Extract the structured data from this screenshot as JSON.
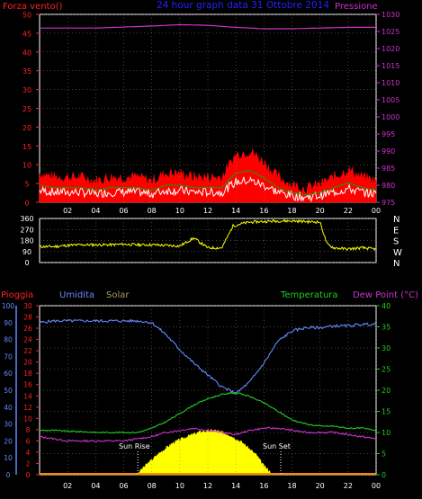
{
  "colors": {
    "background": "#000000",
    "frame": "#ffffff",
    "grid": "#888888",
    "wind": "#ff0000",
    "wind_avg": "#00aa00",
    "wind_low": "#ffffff",
    "pressure": "#cc33cc",
    "title": "#2222ff",
    "direction": "#ffff00",
    "rain": "#ff2222",
    "humidity": "#6688ff",
    "solar": "#ffff00",
    "temperature": "#22cc22",
    "dewpoint": "#cc33cc",
    "yellow_axis": "#dddd00",
    "white_axis": "#ffffff"
  },
  "top_chart": {
    "title": "24 hour graph data 31 Ottobre 2014",
    "left_label": "Forza vento()",
    "right_label": "Pressione",
    "left_ticks": [
      "0",
      "5",
      "10",
      "15",
      "20",
      "25",
      "30",
      "35",
      "40",
      "45",
      "50"
    ],
    "right_ticks": [
      "975",
      "980",
      "985",
      "990",
      "995",
      "1000",
      "1005",
      "1010",
      "1015",
      "1020",
      "1025",
      "1030"
    ]
  },
  "direction_chart": {
    "left_ticks": [
      "0",
      "90",
      "180",
      "270",
      "360"
    ],
    "compass": [
      "N",
      "W",
      "S",
      "E",
      "N"
    ]
  },
  "bottom_chart": {
    "labels": {
      "rain": "Pioggia",
      "humidity": "Umidita",
      "solar": "Solar",
      "temperature": "Temperatura",
      "dewpoint": "Dew Point (°C)"
    },
    "annotations": {
      "sunrise": "Sun Rise",
      "sunset": "Sun Set"
    },
    "humidity_ticks": [
      "0",
      "10",
      "20",
      "30",
      "40",
      "50",
      "60",
      "70",
      "80",
      "90",
      "100"
    ],
    "rain_ticks": [
      "0",
      "2",
      "4",
      "6",
      "8",
      "10",
      "12",
      "14",
      "16",
      "18",
      "20",
      "22",
      "24",
      "26",
      "28",
      "30"
    ],
    "temp_ticks": [
      "0",
      "5",
      "10",
      "15",
      "20",
      "25",
      "30",
      "35",
      "40"
    ]
  },
  "x_ticks": [
    "02",
    "04",
    "06",
    "08",
    "10",
    "12",
    "14",
    "16",
    "18",
    "20",
    "22",
    "00"
  ],
  "chart_data": [
    {
      "type": "line",
      "title": "24 hour graph data 31 Ottobre 2014",
      "x_unit": "hour",
      "xlim": [
        0,
        24
      ],
      "series": [
        {
          "name": "Forza vento()",
          "axis": "left",
          "ylim": [
            0,
            50
          ],
          "x": [
            0,
            1,
            2,
            3,
            4,
            5,
            6,
            7,
            8,
            9,
            10,
            11,
            12,
            13,
            14,
            15,
            16,
            17,
            18,
            19,
            20,
            21,
            22,
            23,
            24
          ],
          "values": [
            7,
            6,
            6,
            6,
            5,
            6,
            6,
            6,
            5,
            7,
            7,
            6,
            6,
            6,
            12,
            13,
            10,
            6,
            4,
            3,
            4,
            6,
            8,
            6,
            5
          ]
        },
        {
          "name": "Pressione",
          "axis": "right",
          "ylim": [
            975,
            1030
          ],
          "x": [
            0,
            2,
            4,
            6,
            8,
            10,
            12,
            14,
            16,
            18,
            20,
            22,
            24
          ],
          "values": [
            1026,
            1026,
            1026,
            1026.3,
            1026.6,
            1027,
            1026.8,
            1026.2,
            1025.8,
            1025.8,
            1026,
            1026.2,
            1026.2
          ]
        }
      ]
    },
    {
      "type": "line",
      "xlim": [
        0,
        24
      ],
      "ylim": [
        0,
        360
      ],
      "series": [
        {
          "name": "direction",
          "x": [
            0,
            1,
            2,
            3,
            4,
            5,
            6,
            7,
            8,
            9,
            10,
            11,
            12,
            13,
            13.8,
            14.5,
            15,
            16,
            17,
            18,
            19,
            20,
            20.5,
            21,
            22,
            23,
            24
          ],
          "values": [
            130,
            130,
            140,
            145,
            145,
            145,
            150,
            145,
            145,
            140,
            135,
            200,
            120,
            120,
            300,
            320,
            330,
            335,
            340,
            340,
            335,
            330,
            150,
            120,
            110,
            120,
            110
          ]
        }
      ]
    },
    {
      "type": "line",
      "xlim": [
        0,
        24
      ],
      "series": [
        {
          "name": "Umidita",
          "axis": "humidity",
          "ylim": [
            0,
            100
          ],
          "x": [
            0,
            1,
            2,
            3,
            4,
            5,
            6,
            7,
            8,
            9,
            10,
            11,
            12,
            13,
            14,
            15,
            16,
            17,
            18,
            19,
            20,
            21,
            22,
            23,
            24
          ],
          "values": [
            90,
            91,
            91,
            91,
            91,
            91,
            91,
            91,
            90,
            83,
            74,
            66,
            59,
            52,
            48,
            55,
            66,
            79,
            85,
            87,
            87,
            88,
            88,
            89,
            89
          ]
        },
        {
          "name": "Temperatura",
          "axis": "temp",
          "ylim": [
            0,
            40
          ],
          "x": [
            0,
            1,
            2,
            3,
            4,
            5,
            6,
            7,
            8,
            9,
            10,
            11,
            12,
            13,
            14,
            15,
            16,
            17,
            18,
            19,
            20,
            21,
            22,
            23,
            24
          ],
          "values": [
            10.5,
            10.5,
            10.3,
            10.2,
            10,
            10,
            10,
            10,
            11,
            12.5,
            14.5,
            16.5,
            18,
            19,
            19.5,
            18.5,
            17,
            15,
            13,
            12,
            11.5,
            11.5,
            11,
            11,
            10.5
          ]
        },
        {
          "name": "Dew Point (°C)",
          "axis": "temp",
          "ylim": [
            0,
            40
          ],
          "x": [
            0,
            1,
            2,
            3,
            4,
            5,
            6,
            7,
            8,
            9,
            10,
            11,
            12,
            13,
            14,
            15,
            16,
            17,
            18,
            19,
            20,
            21,
            22,
            23,
            24
          ],
          "values": [
            9,
            8.5,
            8,
            8,
            8,
            8,
            8,
            8.5,
            9,
            10,
            10.5,
            11,
            10.5,
            10,
            9.5,
            10.5,
            11,
            11,
            10.5,
            10,
            10,
            10,
            9.5,
            9,
            8.5
          ]
        },
        {
          "name": "Solar",
          "axis": "temp",
          "ylim": [
            0,
            40
          ],
          "x": [
            6.9,
            7.5,
            8.5,
            9.5,
            10.5,
            11.5,
            12.5,
            13.5,
            14.5,
            15.5,
            16,
            16.7
          ],
          "values": [
            0,
            2,
            5,
            7.5,
            9,
            10.2,
            10.5,
            9.5,
            7.5,
            4.5,
            2,
            0
          ]
        },
        {
          "name": "Pioggia",
          "axis": "rain",
          "ylim": [
            0,
            30
          ],
          "x": [
            0,
            24
          ],
          "values": [
            0,
            0
          ]
        }
      ]
    }
  ]
}
